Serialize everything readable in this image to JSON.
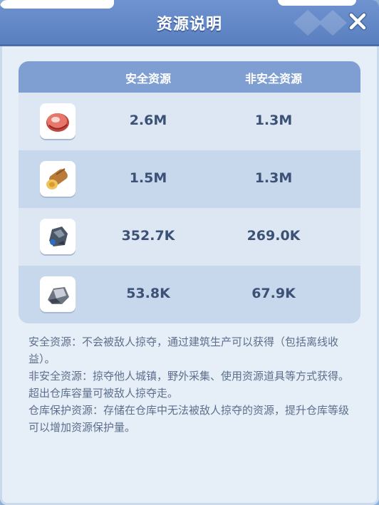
{
  "dialog": {
    "title": "资源说明"
  },
  "table": {
    "headers": [
      "安全资源",
      "非安全资源"
    ],
    "rows": [
      {
        "icon": "meat-icon",
        "safe": "2.6M",
        "unsafe": "1.3M"
      },
      {
        "icon": "wood-icon",
        "safe": "1.5M",
        "unsafe": "1.3M"
      },
      {
        "icon": "ore-icon",
        "safe": "352.7K",
        "unsafe": "269.0K"
      },
      {
        "icon": "stone-icon",
        "safe": "53.8K",
        "unsafe": "67.9K"
      }
    ]
  },
  "description": [
    "安全资源：不会被敌人掠夺，通过建筑生产可以获得（包括离线收益）。",
    "非安全资源：掠夺他人城镇，野外采集、使用资源道具等方式获得。超出仓库容量可被敌人掠夺走。",
    "仓库保护资源：存储在仓库中无法被敌人掠夺的资源，提升仓库等级可以增加资源保护量。"
  ],
  "colors": {
    "header": "#5a7fc0",
    "table_head": "#7f9fd2",
    "value_text": "#3b5276"
  }
}
